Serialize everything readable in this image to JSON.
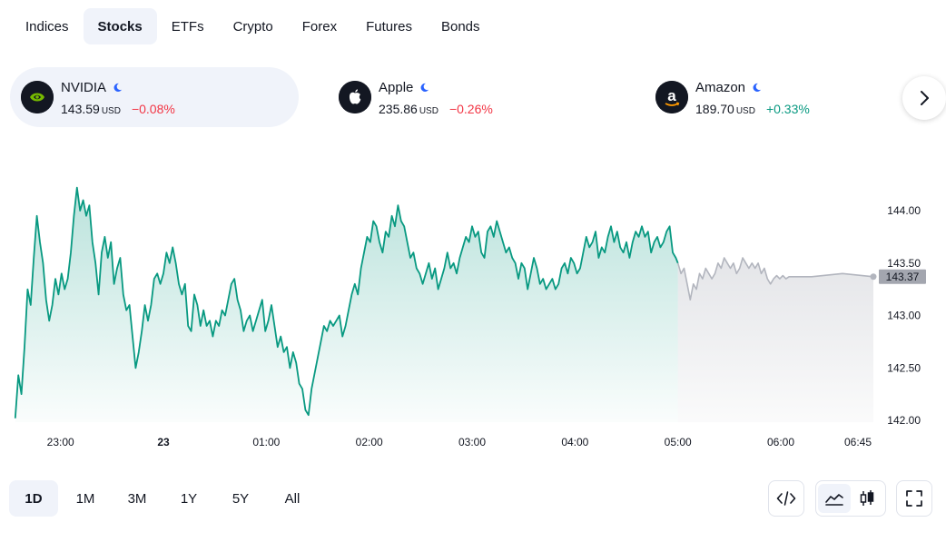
{
  "tabs": [
    {
      "label": "Indices",
      "active": false
    },
    {
      "label": "Stocks",
      "active": true
    },
    {
      "label": "ETFs",
      "active": false
    },
    {
      "label": "Crypto",
      "active": false
    },
    {
      "label": "Forex",
      "active": false
    },
    {
      "label": "Futures",
      "active": false
    },
    {
      "label": "Bonds",
      "active": false
    }
  ],
  "cards": [
    {
      "name": "NVIDIA",
      "price": "143.59",
      "currency": "USD",
      "change": "−0.08%",
      "direction": "neg",
      "logo": "nvidia-logo",
      "active": true
    },
    {
      "name": "Apple",
      "price": "235.86",
      "currency": "USD",
      "change": "−0.26%",
      "direction": "neg",
      "logo": "apple-logo",
      "active": false
    },
    {
      "name": "Amazon",
      "price": "189.70",
      "currency": "USD",
      "change": "+0.33%",
      "direction": "pos",
      "logo": "amazon-logo",
      "active": false
    }
  ],
  "colors": {
    "up": "#089981",
    "down": "#f23645",
    "line_regular": "#089981",
    "line_extended": "#b2b5be",
    "price_tag_bg": "#a3a6af",
    "moon_icon": "#2962ff"
  },
  "chart_data": {
    "type": "area",
    "y_ticks": [
      "144.00",
      "143.50",
      "143.00",
      "142.50",
      "142.00"
    ],
    "y_tick_values": [
      144.0,
      143.5,
      143.0,
      142.5,
      142.0
    ],
    "ylim": [
      141.97,
      144.22
    ],
    "x_ticks": [
      {
        "label": "23:00",
        "t": 22.0,
        "bold": false
      },
      {
        "label": "23",
        "t": 23.0,
        "bold": true
      },
      {
        "label": "01:00",
        "t": 24.0,
        "bold": false
      },
      {
        "label": "02:00",
        "t": 25.0,
        "bold": false
      },
      {
        "label": "03:00",
        "t": 26.0,
        "bold": false
      },
      {
        "label": "04:00",
        "t": 27.0,
        "bold": false
      },
      {
        "label": "05:00",
        "t": 28.0,
        "bold": false
      },
      {
        "label": "06:00",
        "t": 29.0,
        "bold": false
      },
      {
        "label": "06:45",
        "t": 29.75,
        "bold": false
      }
    ],
    "xlim": [
      21.5,
      30.0
    ],
    "last_price_label": "143.37",
    "last_price": 143.37,
    "session_split_t": 28.0,
    "series_regular": [
      [
        21.56,
        142.02
      ],
      [
        21.59,
        142.43
      ],
      [
        21.62,
        142.25
      ],
      [
        21.65,
        142.7
      ],
      [
        21.68,
        143.25
      ],
      [
        21.71,
        143.1
      ],
      [
        21.74,
        143.55
      ],
      [
        21.77,
        143.95
      ],
      [
        21.8,
        143.7
      ],
      [
        21.83,
        143.5
      ],
      [
        21.86,
        143.15
      ],
      [
        21.89,
        142.95
      ],
      [
        21.92,
        143.1
      ],
      [
        21.95,
        143.35
      ],
      [
        21.98,
        143.2
      ],
      [
        22.01,
        143.4
      ],
      [
        22.04,
        143.25
      ],
      [
        22.07,
        143.35
      ],
      [
        22.1,
        143.6
      ],
      [
        22.13,
        143.95
      ],
      [
        22.16,
        144.22
      ],
      [
        22.19,
        144.0
      ],
      [
        22.22,
        144.1
      ],
      [
        22.25,
        143.95
      ],
      [
        22.28,
        144.05
      ],
      [
        22.31,
        143.7
      ],
      [
        22.34,
        143.5
      ],
      [
        22.37,
        143.2
      ],
      [
        22.4,
        143.6
      ],
      [
        22.43,
        143.75
      ],
      [
        22.46,
        143.55
      ],
      [
        22.49,
        143.7
      ],
      [
        22.52,
        143.3
      ],
      [
        22.55,
        143.45
      ],
      [
        22.58,
        143.55
      ],
      [
        22.61,
        143.2
      ],
      [
        22.64,
        143.05
      ],
      [
        22.67,
        143.1
      ],
      [
        22.7,
        142.8
      ],
      [
        22.73,
        142.5
      ],
      [
        22.76,
        142.65
      ],
      [
        22.79,
        142.85
      ],
      [
        22.82,
        143.1
      ],
      [
        22.85,
        142.95
      ],
      [
        22.88,
        143.1
      ],
      [
        22.91,
        143.35
      ],
      [
        22.94,
        143.4
      ],
      [
        22.97,
        143.3
      ],
      [
        23.0,
        143.4
      ],
      [
        23.03,
        143.6
      ],
      [
        23.06,
        143.5
      ],
      [
        23.09,
        143.65
      ],
      [
        23.12,
        143.5
      ],
      [
        23.15,
        143.3
      ],
      [
        23.18,
        143.2
      ],
      [
        23.21,
        143.3
      ],
      [
        23.24,
        142.9
      ],
      [
        23.27,
        142.85
      ],
      [
        23.3,
        143.2
      ],
      [
        23.33,
        143.1
      ],
      [
        23.36,
        142.9
      ],
      [
        23.39,
        143.05
      ],
      [
        23.42,
        142.9
      ],
      [
        23.45,
        142.95
      ],
      [
        23.48,
        142.8
      ],
      [
        23.51,
        142.95
      ],
      [
        23.54,
        142.9
      ],
      [
        23.57,
        143.05
      ],
      [
        23.6,
        143.0
      ],
      [
        23.63,
        143.15
      ],
      [
        23.66,
        143.3
      ],
      [
        23.69,
        143.35
      ],
      [
        23.72,
        143.15
      ],
      [
        23.75,
        143.05
      ],
      [
        23.78,
        142.85
      ],
      [
        23.81,
        142.95
      ],
      [
        23.84,
        143.0
      ],
      [
        23.87,
        142.85
      ],
      [
        23.9,
        142.95
      ],
      [
        23.93,
        143.05
      ],
      [
        23.96,
        143.15
      ],
      [
        23.99,
        142.85
      ],
      [
        24.02,
        142.95
      ],
      [
        24.05,
        143.1
      ],
      [
        24.08,
        142.9
      ],
      [
        24.11,
        142.7
      ],
      [
        24.14,
        142.8
      ],
      [
        24.17,
        142.65
      ],
      [
        24.2,
        142.7
      ],
      [
        24.23,
        142.5
      ],
      [
        24.26,
        142.65
      ],
      [
        24.29,
        142.55
      ],
      [
        24.32,
        142.35
      ],
      [
        24.35,
        142.3
      ],
      [
        24.38,
        142.1
      ],
      [
        24.41,
        142.05
      ],
      [
        24.44,
        142.3
      ],
      [
        24.47,
        142.45
      ],
      [
        24.5,
        142.6
      ],
      [
        24.53,
        142.75
      ],
      [
        24.56,
        142.9
      ],
      [
        24.59,
        142.85
      ],
      [
        24.62,
        142.95
      ],
      [
        24.65,
        142.9
      ],
      [
        24.68,
        142.95
      ],
      [
        24.71,
        143.0
      ],
      [
        24.74,
        142.8
      ],
      [
        24.77,
        142.9
      ],
      [
        24.8,
        143.05
      ],
      [
        24.83,
        143.2
      ],
      [
        24.86,
        143.3
      ],
      [
        24.89,
        143.2
      ],
      [
        24.92,
        143.45
      ],
      [
        24.95,
        143.6
      ],
      [
        24.98,
        143.75
      ],
      [
        25.01,
        143.7
      ],
      [
        25.04,
        143.9
      ],
      [
        25.07,
        143.85
      ],
      [
        25.1,
        143.7
      ],
      [
        25.13,
        143.6
      ],
      [
        25.16,
        143.8
      ],
      [
        25.19,
        143.75
      ],
      [
        25.22,
        143.95
      ],
      [
        25.25,
        143.85
      ],
      [
        25.28,
        144.05
      ],
      [
        25.31,
        143.9
      ],
      [
        25.34,
        143.85
      ],
      [
        25.37,
        143.7
      ],
      [
        25.4,
        143.55
      ],
      [
        25.43,
        143.6
      ],
      [
        25.46,
        143.45
      ],
      [
        25.49,
        143.4
      ],
      [
        25.52,
        143.3
      ],
      [
        25.55,
        143.4
      ],
      [
        25.58,
        143.5
      ],
      [
        25.61,
        143.35
      ],
      [
        25.64,
        143.45
      ],
      [
        25.67,
        143.25
      ],
      [
        25.7,
        143.35
      ],
      [
        25.73,
        143.45
      ],
      [
        25.76,
        143.6
      ],
      [
        25.79,
        143.45
      ],
      [
        25.82,
        143.5
      ],
      [
        25.85,
        143.4
      ],
      [
        25.88,
        143.55
      ],
      [
        25.91,
        143.65
      ],
      [
        25.94,
        143.75
      ],
      [
        25.97,
        143.7
      ],
      [
        26.0,
        143.85
      ],
      [
        26.03,
        143.75
      ],
      [
        26.06,
        143.8
      ],
      [
        26.09,
        143.6
      ],
      [
        26.12,
        143.55
      ],
      [
        26.15,
        143.8
      ],
      [
        26.18,
        143.85
      ]
    ],
    "series_extended": [
      [
        28.0,
        143.5
      ],
      [
        28.03,
        143.4
      ],
      [
        28.06,
        143.45
      ],
      [
        28.09,
        143.3
      ],
      [
        28.12,
        143.15
      ],
      [
        28.15,
        143.3
      ],
      [
        28.18,
        143.25
      ],
      [
        28.21,
        143.4
      ],
      [
        28.24,
        143.35
      ],
      [
        28.27,
        143.45
      ],
      [
        28.3,
        143.4
      ],
      [
        28.33,
        143.35
      ],
      [
        28.36,
        143.4
      ],
      [
        28.39,
        143.5
      ],
      [
        28.42,
        143.45
      ],
      [
        28.45,
        143.55
      ],
      [
        28.48,
        143.5
      ],
      [
        28.51,
        143.45
      ],
      [
        28.54,
        143.5
      ],
      [
        28.57,
        143.4
      ],
      [
        28.6,
        143.45
      ],
      [
        28.63,
        143.55
      ],
      [
        28.66,
        143.5
      ],
      [
        28.69,
        143.45
      ],
      [
        28.72,
        143.5
      ],
      [
        28.75,
        143.45
      ],
      [
        28.78,
        143.5
      ],
      [
        28.81,
        143.4
      ],
      [
        28.84,
        143.45
      ],
      [
        28.87,
        143.35
      ],
      [
        28.9,
        143.3
      ],
      [
        28.93,
        143.35
      ],
      [
        28.96,
        143.38
      ],
      [
        28.99,
        143.35
      ],
      [
        29.02,
        143.38
      ],
      [
        29.05,
        143.35
      ],
      [
        29.08,
        143.37
      ]
    ]
  },
  "ranges": [
    {
      "label": "1D",
      "active": true
    },
    {
      "label": "1M",
      "active": false
    },
    {
      "label": "3M",
      "active": false
    },
    {
      "label": "1Y",
      "active": false
    },
    {
      "label": "5Y",
      "active": false
    },
    {
      "label": "All",
      "active": false
    }
  ],
  "toolbar": {
    "embed_icon": "code-icon",
    "area_icon": "area-chart-icon",
    "candles_icon": "candlestick-icon",
    "fullscreen_icon": "fullscreen-icon"
  }
}
